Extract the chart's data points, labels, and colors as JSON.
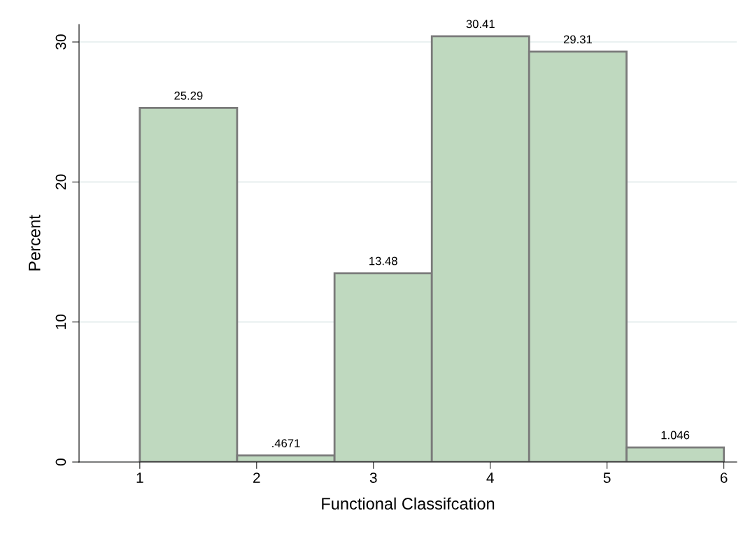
{
  "chart_data": {
    "type": "histogram",
    "xlabel": "Functional Classifcation",
    "ylabel": "Percent",
    "bins": [
      1,
      1.833,
      2.667,
      3.5,
      4.333,
      5.167,
      6
    ],
    "values": [
      25.29,
      0.4671,
      13.48,
      30.41,
      29.31,
      1.046
    ],
    "value_labels": [
      "25.29",
      ".4671",
      "13.48",
      "30.41",
      "29.31",
      "1.046"
    ],
    "color": "#bfd9bf",
    "xlim": [
      0.48,
      6.11
    ],
    "ylim": [
      0,
      31.25
    ],
    "xticks": [
      1,
      2,
      3,
      4,
      5,
      6
    ],
    "yticks": [
      0,
      10,
      20,
      30
    ],
    "grid": "y"
  }
}
